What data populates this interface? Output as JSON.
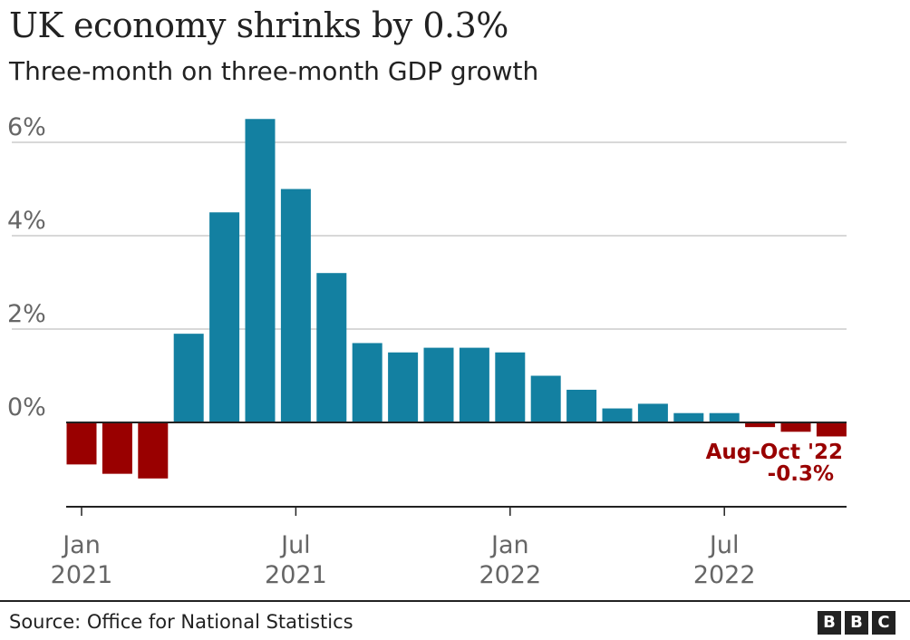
{
  "title": "UK economy shrinks by 0.3%",
  "subtitle": "Three-month on three-month GDP growth",
  "source": "Source: Office for National Statistics",
  "logo": {
    "letters": [
      "B",
      "B",
      "C"
    ]
  },
  "colors": {
    "positive": "#1380a1",
    "negative": "#990000",
    "grid": "#cccccc",
    "axis": "#222222",
    "text": "#222222",
    "tick_text": "#666666"
  },
  "chart_data": {
    "type": "bar",
    "title": "UK economy shrinks by 0.3%",
    "subtitle": "Three-month on three-month GDP growth",
    "xlabel": "",
    "ylabel": "",
    "ylim": [
      -1.8,
      6.5
    ],
    "grid": true,
    "unit": "%",
    "y_ticks": [
      {
        "value": 6,
        "label": "6%"
      },
      {
        "value": 4,
        "label": "4%"
      },
      {
        "value": 2,
        "label": "2%"
      },
      {
        "value": 0,
        "label": "0%"
      }
    ],
    "x_ticks": [
      {
        "index": 0,
        "label_line1": "Jan",
        "label_line2": "2021"
      },
      {
        "index": 6,
        "label_line1": "Jul",
        "label_line2": "2021"
      },
      {
        "index": 12,
        "label_line1": "Jan",
        "label_line2": "2022"
      },
      {
        "index": 18,
        "label_line1": "Jul",
        "label_line2": "2022"
      }
    ],
    "values": [
      -0.9,
      -1.1,
      -1.2,
      1.9,
      4.5,
      6.5,
      5.0,
      3.2,
      1.7,
      1.5,
      1.6,
      1.6,
      1.5,
      1.0,
      0.7,
      0.3,
      0.4,
      0.2,
      0.2,
      -0.1,
      -0.2,
      -0.3
    ],
    "annotations": [
      {
        "index": 21,
        "line1": "Aug-Oct '22",
        "line2": "-0.3%"
      }
    ]
  }
}
